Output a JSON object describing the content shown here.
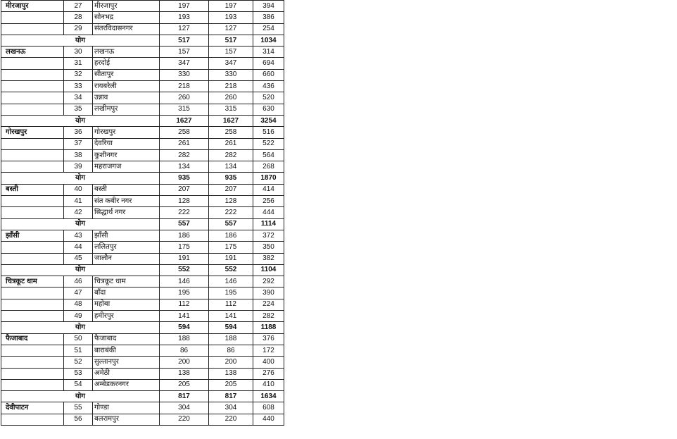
{
  "table": {
    "rows": [
      {
        "division": "मीरजापुर",
        "no": "27",
        "district": "मीरजापुर",
        "a": "197",
        "b": "197",
        "c": "394"
      },
      {
        "division": "",
        "no": "28",
        "district": "सोनभद्र",
        "a": "193",
        "b": "193",
        "c": "386"
      },
      {
        "division": "",
        "no": "29",
        "district": "संतरविदासनगर",
        "a": "127",
        "b": "127",
        "c": "254"
      },
      {
        "total": true,
        "label": "योग",
        "a": "517",
        "b": "517",
        "c": "1034"
      },
      {
        "division": "लखनऊ",
        "no": "30",
        "district": "लखनऊ",
        "a": "157",
        "b": "157",
        "c": "314"
      },
      {
        "division": "",
        "no": "31",
        "district": "हरदोई",
        "a": "347",
        "b": "347",
        "c": "694"
      },
      {
        "division": "",
        "no": "32",
        "district": "सीतापुर",
        "a": "330",
        "b": "330",
        "c": "660"
      },
      {
        "division": "",
        "no": "33",
        "district": "रायबरेली",
        "a": "218",
        "b": "218",
        "c": "436"
      },
      {
        "division": "",
        "no": "34",
        "district": "उन्नाव",
        "a": "260",
        "b": "260",
        "c": "520"
      },
      {
        "division": "",
        "no": "35",
        "district": "लखीमपुर",
        "a": "315",
        "b": "315",
        "c": "630"
      },
      {
        "total": true,
        "label": "योग",
        "a": "1627",
        "b": "1627",
        "c": "3254"
      },
      {
        "division": "गोरखपुर",
        "no": "36",
        "district": "गोरखपुर",
        "a": "258",
        "b": "258",
        "c": "516"
      },
      {
        "division": "",
        "no": "37",
        "district": "देवरिया",
        "a": "261",
        "b": "261",
        "c": "522"
      },
      {
        "division": "",
        "no": "38",
        "district": "कुशीनगर",
        "a": "282",
        "b": "282",
        "c": "564"
      },
      {
        "division": "",
        "no": "39",
        "district": "महराजगज",
        "a": "134",
        "b": "134",
        "c": "268"
      },
      {
        "total": true,
        "label": "योग",
        "a": "935",
        "b": "935",
        "c": "1870"
      },
      {
        "division": "बस्ती",
        "no": "40",
        "district": "बस्ती",
        "a": "207",
        "b": "207",
        "c": "414"
      },
      {
        "division": "",
        "no": "41",
        "district": "संत कबीर नगर",
        "a": "128",
        "b": "128",
        "c": "256"
      },
      {
        "division": "",
        "no": "42",
        "district": "सिद्धार्थ नगर",
        "a": "222",
        "b": "222",
        "c": "444"
      },
      {
        "total": true,
        "label": "योग",
        "a": "557",
        "b": "557",
        "c": "1114"
      },
      {
        "division": "झाँसी",
        "no": "43",
        "district": "झाँसी",
        "a": "186",
        "b": "186",
        "c": "372"
      },
      {
        "division": "",
        "no": "44",
        "district": "ललितपुर",
        "a": "175",
        "b": "175",
        "c": "350"
      },
      {
        "division": "",
        "no": "45",
        "district": "जालौन",
        "a": "191",
        "b": "191",
        "c": "382"
      },
      {
        "total": true,
        "label": "योग",
        "a": "552",
        "b": "552",
        "c": "1104"
      },
      {
        "division": "चित्रकूट धाम",
        "no": "46",
        "district": "चित्रकूट धाम",
        "a": "146",
        "b": "146",
        "c": "292"
      },
      {
        "division": "",
        "no": "47",
        "district": "बाँदा",
        "a": "195",
        "b": "195",
        "c": "390"
      },
      {
        "division": "",
        "no": "48",
        "district": "महोबा",
        "a": "112",
        "b": "112",
        "c": "224"
      },
      {
        "division": "",
        "no": "49",
        "district": "हमीरपुर",
        "a": "141",
        "b": "141",
        "c": "282"
      },
      {
        "total": true,
        "label": "योग",
        "a": "594",
        "b": "594",
        "c": "1188"
      },
      {
        "division": "फैजाबाद",
        "no": "50",
        "district": "फैजाबाद",
        "a": "188",
        "b": "188",
        "c": "376"
      },
      {
        "division": "",
        "no": "51",
        "district": "बाराबंकी",
        "a": "86",
        "b": "86",
        "c": "172"
      },
      {
        "division": "",
        "no": "52",
        "district": "सुल्तानपुर",
        "a": "200",
        "b": "200",
        "c": "400"
      },
      {
        "division": "",
        "no": "53",
        "district": "अमेठी",
        "a": "138",
        "b": "138",
        "c": "276"
      },
      {
        "division": "",
        "no": "54",
        "district": "अम्बेडकरनगर",
        "a": "205",
        "b": "205",
        "c": "410"
      },
      {
        "total": true,
        "label": "योग",
        "a": "817",
        "b": "817",
        "c": "1634"
      },
      {
        "division": "देवीपाटन",
        "no": "55",
        "district": "गोण्डा",
        "a": "304",
        "b": "304",
        "c": "608"
      },
      {
        "division": "",
        "no": "56",
        "district": "बलरामपुर",
        "a": "220",
        "b": "220",
        "c": "440"
      }
    ]
  }
}
